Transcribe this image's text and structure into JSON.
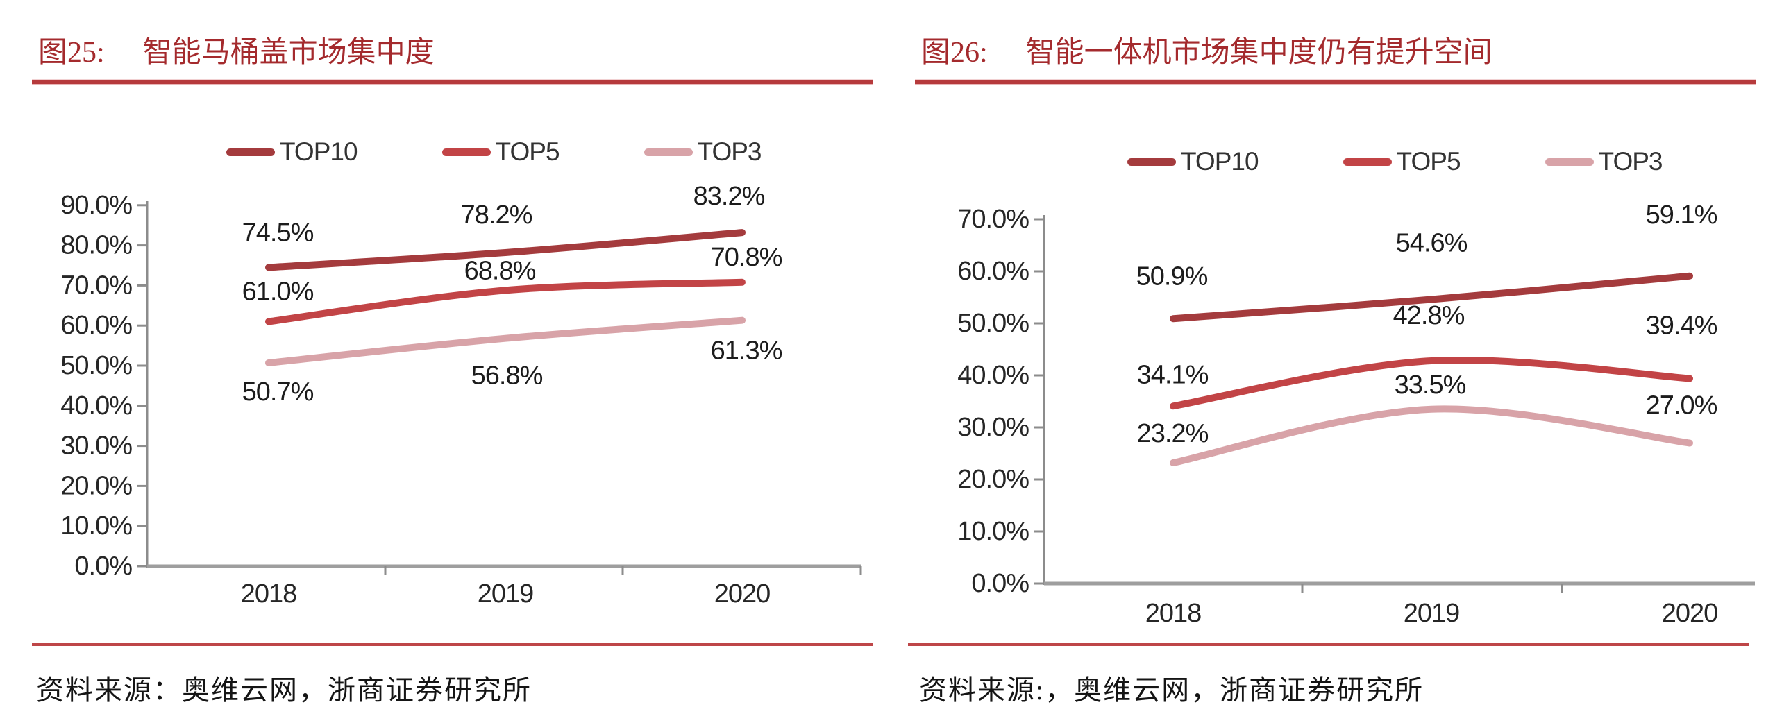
{
  "colors": {
    "title_red": "#A42A2D",
    "rule_red": "#B63A3C",
    "rule2_red": "#BE4648",
    "axis_gray": "#8C8C8C",
    "baseline_gray": "#9E9E9E",
    "tick_label": "#262626",
    "data_label": "#1C1C1C",
    "top10": "#A43B3D",
    "top5": "#C24446",
    "top3": "#D8A3A8"
  },
  "figures": [
    {
      "label": "图25:",
      "title": "智能马桶盖市场集中度",
      "source_prefix": "资料来源：",
      "source": "奥维云网，浙商证券研究所",
      "chart_data": {
        "type": "line",
        "title": "智能马桶盖市场集中度",
        "categories": [
          "2018",
          "2019",
          "2020"
        ],
        "series": [
          {
            "name": "TOP10",
            "color_key": "top10",
            "values": [
              74.5,
              78.2,
              83.2
            ],
            "label_offsets": [
              [
                13,
                -50
              ],
              [
                -13,
                -54
              ],
              [
                -19,
                -52
              ]
            ]
          },
          {
            "name": "TOP5",
            "color_key": "top5",
            "values": [
              61.0,
              68.8,
              70.8
            ],
            "label_offsets": [
              [
                13,
                -43
              ],
              [
                -8,
                -28
              ],
              [
                6,
                -36
              ]
            ]
          },
          {
            "name": "TOP3",
            "color_key": "top3",
            "values": [
              50.7,
              56.8,
              61.3
            ],
            "label_offsets": [
              [
                13,
                42
              ],
              [
                2,
                54
              ],
              [
                6,
                44
              ]
            ]
          }
        ],
        "xlabel": "",
        "ylabel": "",
        "ylim": [
          0,
          90
        ],
        "ytick_step": 10,
        "yticks": [
          "0.0%",
          "10.0%",
          "20.0%",
          "30.0%",
          "40.0%",
          "50.0%",
          "60.0%",
          "70.0%",
          "80.0%",
          "90.0%"
        ],
        "y_format": "percent1",
        "grid": false,
        "legend_position": "top",
        "smoothed_lines": true,
        "data_labels": true
      }
    },
    {
      "label": "图26:",
      "title": "智能一体机市场集中度仍有提升空间",
      "source_prefix": "资料来源:，",
      "source": "奥维云网，浙商证券研究所",
      "chart_data": {
        "type": "line",
        "title": "智能一体机市场集中度仍有提升空间",
        "categories": [
          "2018",
          "2019",
          "2020"
        ],
        "series": [
          {
            "name": "TOP10",
            "color_key": "top10",
            "values": [
              50.9,
              54.6,
              59.1
            ],
            "label_offsets": [
              [
                -2,
                -61
              ],
              [
                0,
                -81
              ],
              [
                -12,
                -88
              ]
            ]
          },
          {
            "name": "TOP5",
            "color_key": "top5",
            "values": [
              34.1,
              42.8,
              39.4
            ],
            "label_offsets": [
              [
                -1,
                -45
              ],
              [
                -4,
                -65
              ],
              [
                -12,
                -76
              ]
            ]
          },
          {
            "name": "TOP3",
            "color_key": "top3",
            "values": [
              23.2,
              33.5,
              27.0
            ],
            "label_offsets": [
              [
                -1,
                -42
              ],
              [
                -2,
                -35
              ],
              [
                -12,
                -54
              ]
            ]
          }
        ],
        "xlabel": "",
        "ylabel": "",
        "ylim": [
          0,
          70
        ],
        "ytick_step": 10,
        "yticks": [
          "0.0%",
          "10.0%",
          "20.0%",
          "30.0%",
          "40.0%",
          "50.0%",
          "60.0%",
          "70.0%"
        ],
        "y_format": "percent1",
        "grid": false,
        "legend_position": "top",
        "smoothed_lines": true,
        "data_labels": true
      }
    }
  ]
}
